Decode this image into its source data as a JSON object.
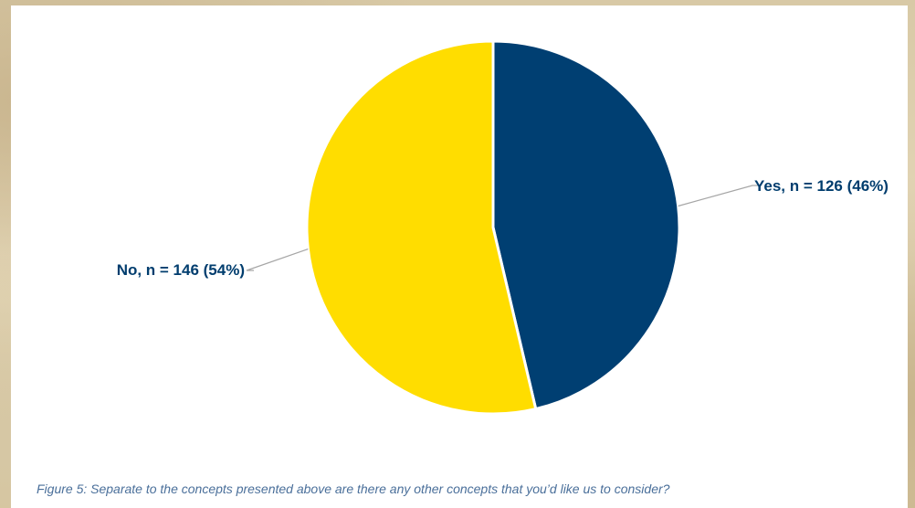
{
  "chart_data": {
    "type": "pie",
    "title": "",
    "slices": [
      {
        "label": "Yes, n = 126 (46%)",
        "category": "Yes",
        "count": 126,
        "percent": 46,
        "color": "#003f72"
      },
      {
        "label": "No, n = 146 (54%)",
        "category": "No",
        "count": 146,
        "percent": 54,
        "color": "#ffdd00"
      }
    ],
    "start_angle": "12 o'clock",
    "direction": "clockwise",
    "legend": "none (labels with leader lines)"
  },
  "caption": "Figure 5: Separate to the concepts presented above are there any other concepts that you’d like us to consider?"
}
